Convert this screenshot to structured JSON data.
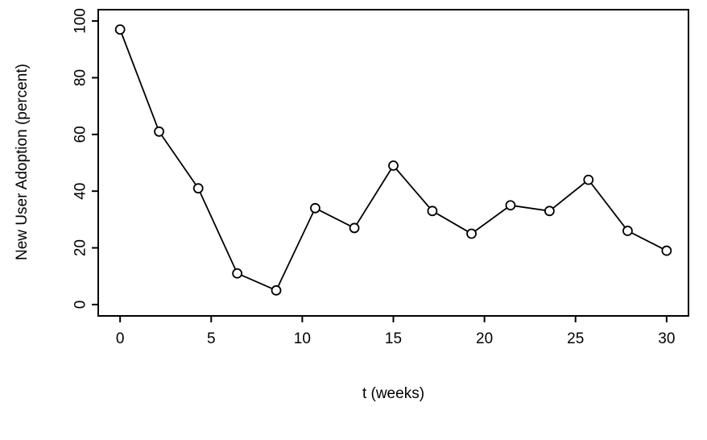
{
  "chart_data": {
    "type": "line",
    "title": "",
    "xlabel": "t (weeks)",
    "ylabel": "New User Adoption (percent)",
    "x": [
      0,
      2.14,
      4.29,
      6.43,
      8.57,
      10.71,
      12.86,
      15,
      17.14,
      19.29,
      21.43,
      23.57,
      25.71,
      27.86,
      30
    ],
    "y": [
      97,
      61,
      41,
      11,
      5,
      34,
      27,
      49,
      33,
      25,
      35,
      33,
      44,
      26,
      19
    ],
    "xlim": [
      0,
      30
    ],
    "ylim": [
      0,
      100
    ],
    "xticks": [
      0,
      5,
      10,
      15,
      20,
      25,
      30
    ],
    "yticks": [
      0,
      20,
      40,
      60,
      80,
      100
    ],
    "marker": "open-circle",
    "line_color": "#000000",
    "background": "#ffffff",
    "grid": false,
    "legend": "none"
  }
}
